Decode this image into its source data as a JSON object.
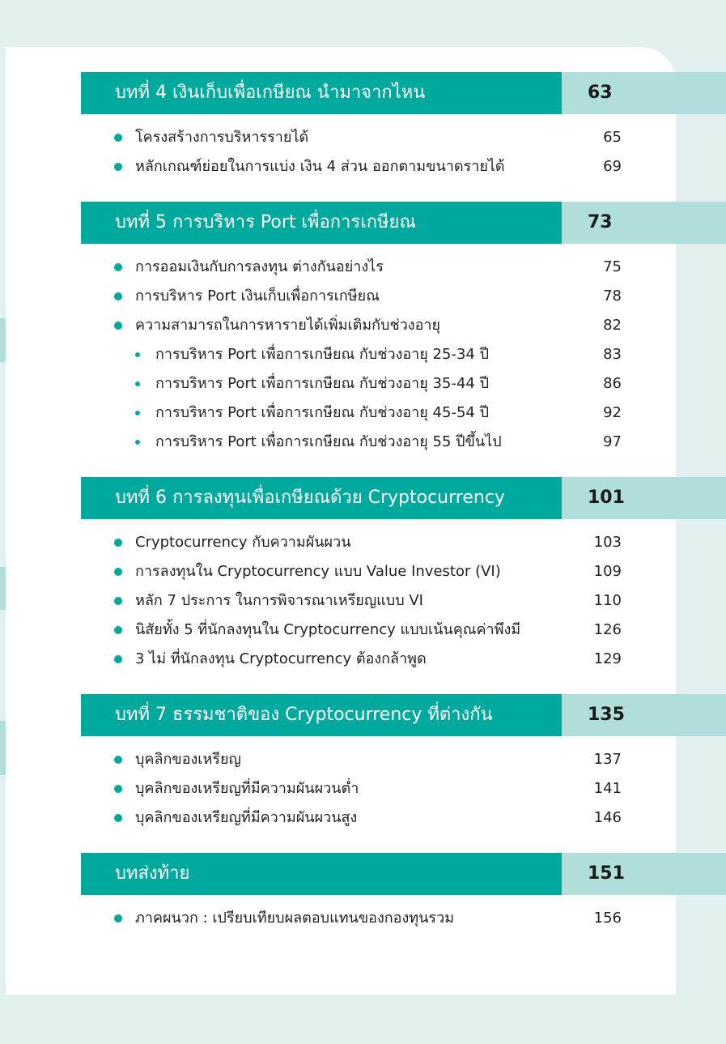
{
  "colors": {
    "accent": "#00a99d",
    "accent_light": "#b0dfdb",
    "background": "#e2f1ef"
  },
  "sections": [
    {
      "title": "บทที่ 4  เงินเก็บเพื่อเกษียณ นำมาจากไหน",
      "page": "63",
      "items": [
        {
          "label": "โครงสร้างการบริหารรายได้",
          "page": "65",
          "sub": false
        },
        {
          "label": "หลักเกณฑ์ย่อยในการแบ่ง เงิน 4 ส่วน ออกตามขนาดรายได้",
          "page": "69",
          "sub": false
        }
      ]
    },
    {
      "title": "บทที่ 5   การบริหาร Port เพื่อการเกษียณ",
      "page": "73",
      "items": [
        {
          "label": "การออมเงินกับการลงทุน ต่างกันอย่างไร",
          "page": "75",
          "sub": false
        },
        {
          "label": "การบริหาร Port เงินเก็บเพื่อการเกษียณ",
          "page": "78",
          "sub": false
        },
        {
          "label": "ความสามารถในการหารายได้เพิ่มเติมกับช่วงอายุ",
          "page": "82",
          "sub": false
        },
        {
          "label": "การบริหาร Port เพื่อการเกษียณ กับช่วงอายุ 25-34 ปี",
          "page": "83",
          "sub": true
        },
        {
          "label": "การบริหาร Port เพื่อการเกษียณ กับช่วงอายุ 35-44 ปี",
          "page": "86",
          "sub": true
        },
        {
          "label": "การบริหาร Port เพื่อการเกษียณ กับช่วงอายุ 45-54 ปี",
          "page": "92",
          "sub": true
        },
        {
          "label": "การบริหาร Port เพื่อการเกษียณ กับช่วงอายุ 55 ปีขึ้นไป",
          "page": "97",
          "sub": true
        }
      ]
    },
    {
      "title": "บทที่ 6  การลงทุนเพื่อเกษียณด้วย Cryptocurrency",
      "page": "101",
      "items": [
        {
          "label": "Cryptocurrency กับความผันผวน",
          "page": "103",
          "sub": false
        },
        {
          "label": "การลงทุนใน Cryptocurrency แบบ Value Investor (VI)",
          "page": "109",
          "sub": false
        },
        {
          "label": "หลัก 7 ประการ ในการพิจารณาเหรียญแบบ VI",
          "page": "110",
          "sub": false
        },
        {
          "label": "นิสัยทั้ง 5 ที่นักลงทุนใน Cryptocurrency แบบเน้นคุณค่าพึงมี",
          "page": "126",
          "sub": false
        },
        {
          "label": "3 ไม่ ที่นักลงทุน Cryptocurrency ต้องกล้าพูด",
          "page": "129",
          "sub": false
        }
      ]
    },
    {
      "title": "บทที่ 7  ธรรมชาติของ Cryptocurrency ที่ต่างกัน",
      "page": "135",
      "items": [
        {
          "label": "บุคลิกของเหรียญ",
          "page": "137",
          "sub": false
        },
        {
          "label": "บุคลิกของเหรียญที่มีความผันผวนต่ำ",
          "page": "141",
          "sub": false
        },
        {
          "label": "บุคลิกของเหรียญที่มีความผันผวนสูง",
          "page": "146",
          "sub": false
        }
      ]
    },
    {
      "title": "บทส่งท้าย",
      "page": "151",
      "items": [
        {
          "label": "ภาคผนวก : เปรียบเทียบผลตอบแทนของกองทุนรวม",
          "page": "156",
          "sub": false
        }
      ]
    }
  ]
}
